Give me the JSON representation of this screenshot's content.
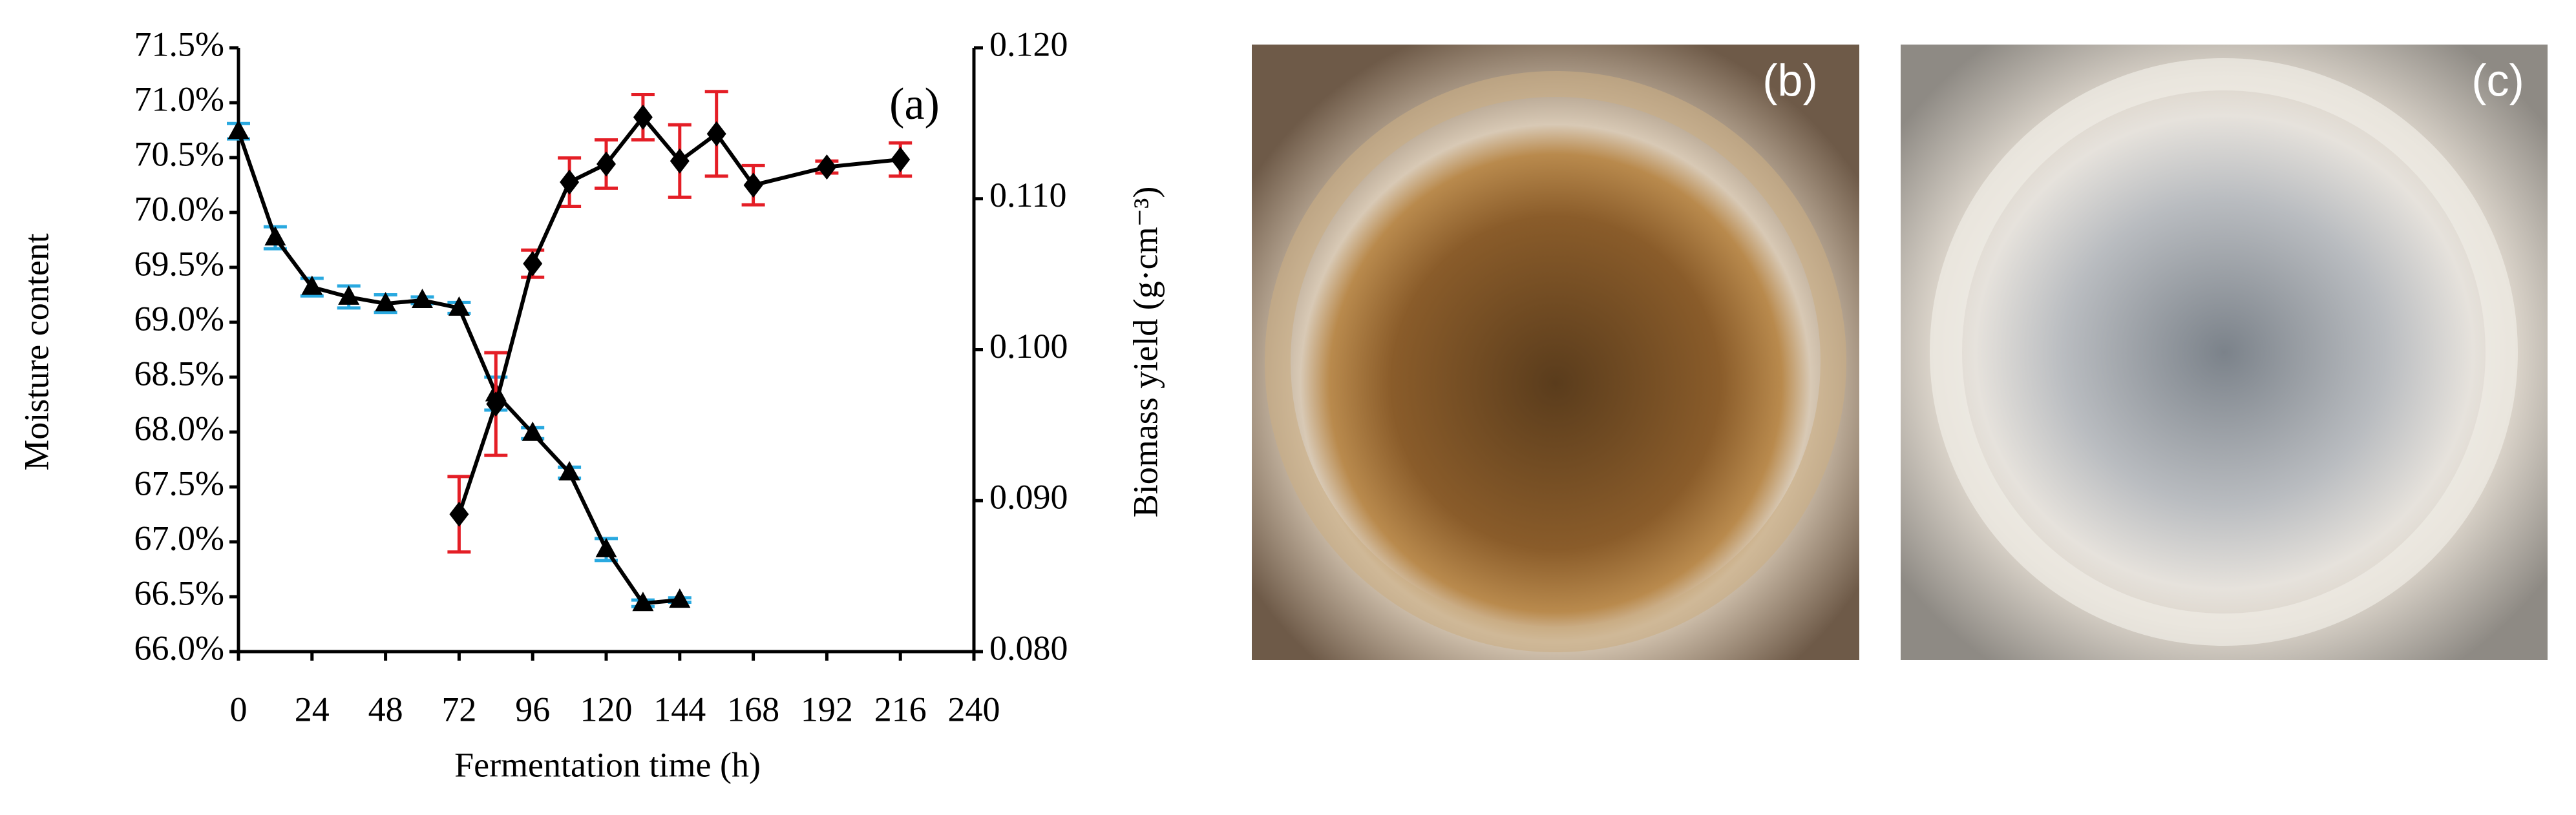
{
  "chart_data": {
    "type": "line",
    "annotation": "(a)",
    "x_label": "Fermentation time (h)",
    "y_label": "Moisture content",
    "y2_label": "Biomass yield (g·cm⁻³)",
    "xlim": [
      0,
      240
    ],
    "xticks": [
      0,
      24,
      48,
      72,
      96,
      120,
      144,
      168,
      192,
      216,
      240
    ],
    "ylim": [
      66.0,
      71.5
    ],
    "yticks": [
      {
        "value": 66.0,
        "label": "66.0%"
      },
      {
        "value": 66.5,
        "label": "66.5%"
      },
      {
        "value": 67.0,
        "label": "67.0%"
      },
      {
        "value": 67.5,
        "label": "67.5%"
      },
      {
        "value": 68.0,
        "label": "68.0%"
      },
      {
        "value": 68.5,
        "label": "68.5%"
      },
      {
        "value": 69.0,
        "label": "69.0%"
      },
      {
        "value": 69.5,
        "label": "69.5%"
      },
      {
        "value": 70.0,
        "label": "70.0%"
      },
      {
        "value": 70.5,
        "label": "70.5%"
      },
      {
        "value": 71.0,
        "label": "71.0%"
      },
      {
        "value": 71.5,
        "label": "71.5%"
      }
    ],
    "y2lim": [
      0.08,
      0.12
    ],
    "y2ticks": [
      {
        "value": 0.08,
        "label": "0.080"
      },
      {
        "value": 0.09,
        "label": "0.090"
      },
      {
        "value": 0.1,
        "label": "0.100"
      },
      {
        "value": 0.11,
        "label": "0.110"
      },
      {
        "value": 0.12,
        "label": "0.120"
      }
    ],
    "series": [
      {
        "marker": "triangle",
        "color": "#000000",
        "error_color": "#29a9e0",
        "x": [
          0,
          12,
          24,
          36,
          48,
          60,
          72,
          84,
          96,
          108,
          120,
          132,
          144
        ],
        "values": [
          70.74,
          69.77,
          69.32,
          69.23,
          69.17,
          69.2,
          69.13,
          68.35,
          67.99,
          67.63,
          66.93,
          66.44,
          66.47
        ],
        "errors": [
          0.07,
          0.1,
          0.08,
          0.1,
          0.08,
          0.03,
          0.05,
          0.15,
          0.05,
          0.05,
          0.1,
          0.03,
          0.02
        ]
      },
      {
        "marker": "diamond",
        "color": "#000000",
        "error_color": "#e41e26",
        "axis": "y2",
        "x": [
          72,
          84,
          96,
          108,
          120,
          132,
          144,
          156,
          168,
          192,
          216
        ],
        "values": [
          0.0891,
          0.0964,
          0.1057,
          0.1111,
          0.1123,
          0.1154,
          0.1125,
          0.1143,
          0.1109,
          0.1121,
          0.1126
        ],
        "errors": [
          0.0025,
          0.0034,
          0.0009,
          0.0016,
          0.0016,
          0.0015,
          0.0024,
          0.0028,
          0.0013,
          0.0004,
          0.0011
        ]
      }
    ]
  },
  "images": [
    {
      "label": "(b)"
    },
    {
      "label": "(c)"
    }
  ]
}
